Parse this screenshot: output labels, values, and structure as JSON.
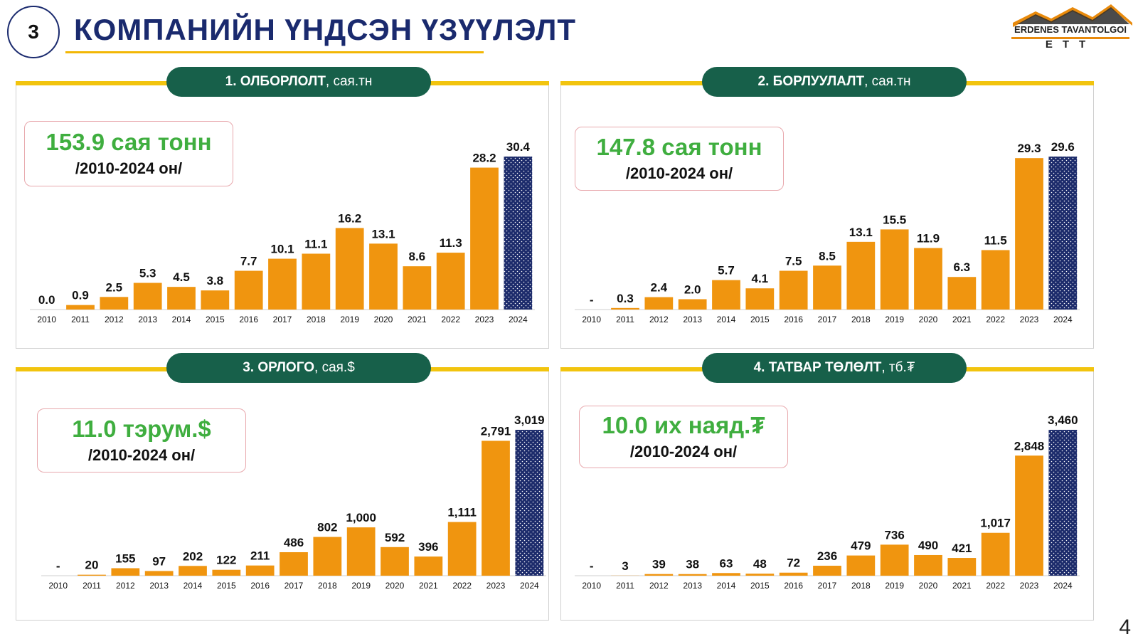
{
  "header": {
    "badge": "3",
    "title": "КОМПАНИЙН ҮНДСЭН ҮЗҮҮЛЭЛТ",
    "logo_text": "ERDENES TAVANTOLGOI",
    "logo_abbr": "ЕТТ",
    "page_number": "4"
  },
  "colors": {
    "bar": "#f0950f",
    "highlight": "#1c2b6b",
    "pill": "#17604a",
    "accent": "#f2c40e",
    "summary": "#3fae3f"
  },
  "chart_data": [
    {
      "type": "bar",
      "title_bold": "1. ОЛБОРЛОЛТ",
      "title_unit": ", сая.тн",
      "summary_value": "153.9 сая тонн",
      "summary_period": "/2010-2024 он/",
      "categories": [
        "2010",
        "2011",
        "2012",
        "2013",
        "2014",
        "2015",
        "2016",
        "2017",
        "2018",
        "2019",
        "2020",
        "2021",
        "2022",
        "2023",
        "2024"
      ],
      "values": [
        0.0,
        0.9,
        2.5,
        5.3,
        4.5,
        3.8,
        7.7,
        10.1,
        11.1,
        16.2,
        13.1,
        8.6,
        11.3,
        28.2,
        30.4
      ],
      "value_labels": [
        "0.0",
        "0.9",
        "2.5",
        "5.3",
        "4.5",
        "3.8",
        "7.7",
        "10.1",
        "11.1",
        "16.2",
        "13.1",
        "8.6",
        "11.3",
        "28.2",
        "30.4"
      ],
      "ylim": [
        0,
        30.4
      ]
    },
    {
      "type": "bar",
      "title_bold": "2. БОРЛУУЛАЛТ",
      "title_unit": ", сая.тн",
      "summary_value": "147.8 сая тонн",
      "summary_period": "/2010-2024 он/",
      "categories": [
        "2010",
        "2011",
        "2012",
        "2013",
        "2014",
        "2015",
        "2016",
        "2017",
        "2018",
        "2019",
        "2020",
        "2021",
        "2022",
        "2023",
        "2024"
      ],
      "values": [
        0,
        0.3,
        2.4,
        2.0,
        5.7,
        4.1,
        7.5,
        8.5,
        13.1,
        15.5,
        11.9,
        6.3,
        11.5,
        29.3,
        29.6
      ],
      "value_labels": [
        "-",
        "0.3",
        "2.4",
        "2.0",
        "5.7",
        "4.1",
        "7.5",
        "8.5",
        "13.1",
        "15.5",
        "11.9",
        "6.3",
        "11.5",
        "29.3",
        "29.6"
      ],
      "ylim": [
        0,
        29.6
      ]
    },
    {
      "type": "bar",
      "title_bold": "3. ОРЛОГО",
      "title_unit": ", сая.$",
      "summary_value": "11.0 тэрум.$",
      "summary_period": "/2010-2024 он/",
      "categories": [
        "2010",
        "2011",
        "2012",
        "2013",
        "2014",
        "2015",
        "2016",
        "2017",
        "2018",
        "2019",
        "2020",
        "2021",
        "2022",
        "2023",
        "2024"
      ],
      "values": [
        0,
        20,
        155,
        97,
        202,
        122,
        211,
        486,
        802,
        1000,
        592,
        396,
        1111,
        2791,
        3019
      ],
      "value_labels": [
        "-",
        "20",
        "155",
        "97",
        "202",
        "122",
        "211",
        "486",
        "802",
        "1,000",
        "592",
        "396",
        "1,111",
        "2,791",
        "3,019"
      ],
      "ylim": [
        0,
        3019
      ]
    },
    {
      "type": "bar",
      "title_bold": "4. ТАТВАР ТӨЛӨЛТ",
      "title_unit": ", тб.₮",
      "summary_value": "10.0 их наяд.₮",
      "summary_period": "/2010-2024 он/",
      "categories": [
        "2010",
        "2011",
        "2012",
        "2013",
        "2014",
        "2015",
        "2016",
        "2017",
        "2018",
        "2019",
        "2020",
        "2021",
        "2022",
        "2023",
        "2024"
      ],
      "values": [
        0,
        3,
        39,
        38,
        63,
        48,
        72,
        236,
        479,
        736,
        490,
        421,
        1017,
        2848,
        3460
      ],
      "value_labels": [
        "-",
        "3",
        "39",
        "38",
        "63",
        "48",
        "72",
        "236",
        "479",
        "736",
        "490",
        "421",
        "1,017",
        "2,848",
        "3,460"
      ],
      "ylim": [
        0,
        3460
      ]
    }
  ]
}
